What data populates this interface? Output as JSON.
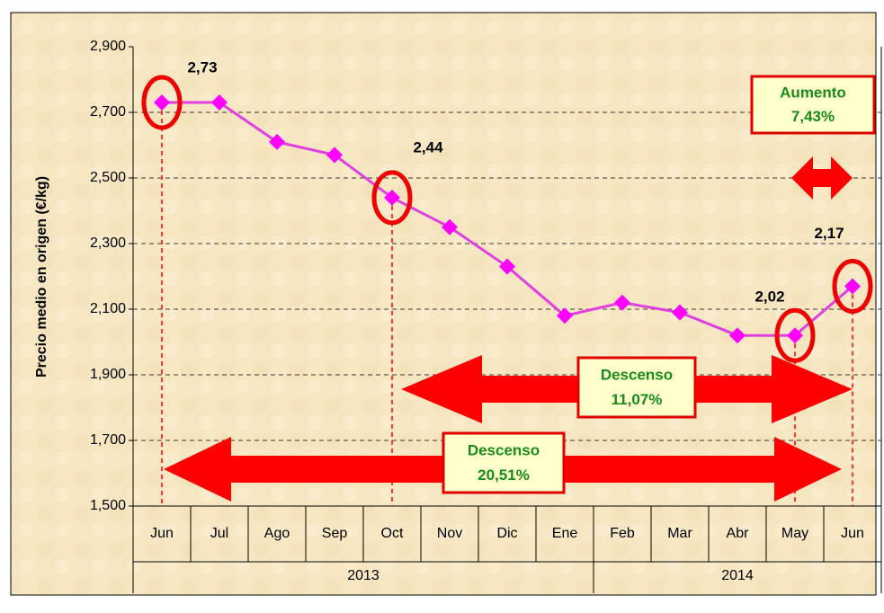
{
  "chart_data": {
    "type": "line",
    "y_axis_label": "Precio medio en origen (€/kg)",
    "categories": [
      "Jun",
      "Jul",
      "Ago",
      "Sep",
      "Oct",
      "Nov",
      "Dic",
      "Ene",
      "Feb",
      "Mar",
      "Abr",
      "May",
      "Jun"
    ],
    "category_groups": [
      {
        "label": "2013",
        "span": 8
      },
      {
        "label": "2014",
        "span": 5
      }
    ],
    "series": [
      {
        "color": "#ff00ff",
        "line_color": "#e040e0",
        "values": [
          2.73,
          2.73,
          2.61,
          2.57,
          2.44,
          2.35,
          2.23,
          2.08,
          2.12,
          2.09,
          2.02,
          2.02,
          2.17
        ],
        "value_labels": [
          "2,73",
          null,
          null,
          null,
          "2,44",
          null,
          null,
          null,
          null,
          null,
          null,
          "2,02",
          "2,17"
        ]
      }
    ],
    "ylim": [
      1.5,
      2.9
    ],
    "yticks": [
      {
        "value": 1.5,
        "label": "1,500"
      },
      {
        "value": 1.7,
        "label": "1,700"
      },
      {
        "value": 1.9,
        "label": "1,900"
      },
      {
        "value": 2.1,
        "label": "2,100"
      },
      {
        "value": 2.3,
        "label": "2,300"
      },
      {
        "value": 2.5,
        "label": "2,500"
      },
      {
        "value": 2.7,
        "label": "2,700"
      },
      {
        "value": 2.9,
        "label": "2,900"
      }
    ],
    "grid": true,
    "highlighted_points": [
      0,
      4,
      11,
      12
    ],
    "annotations": [
      {
        "lines": [
          "Aumento",
          "7,43%"
        ]
      },
      {
        "lines": [
          "Descenso",
          "11,07%"
        ]
      },
      {
        "lines": [
          "Descenso",
          "20,51%"
        ]
      }
    ]
  }
}
